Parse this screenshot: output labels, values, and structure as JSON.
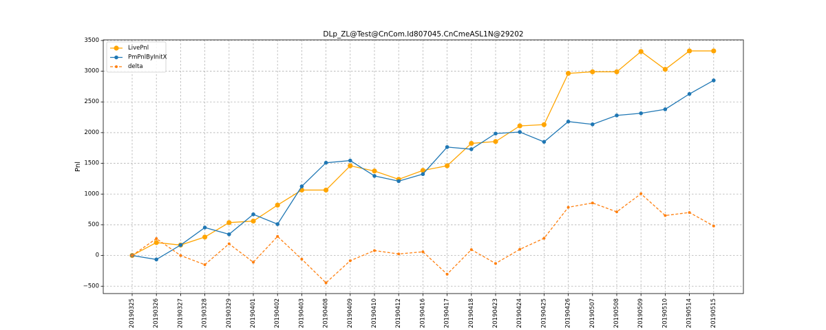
{
  "chart_data": {
    "type": "line",
    "title": "DLp_ZL@Test@CnCom.Id807045.CnCmeASL1N@29202",
    "xlabel": "",
    "ylabel": "Pnl",
    "categories": [
      "20190325",
      "20190326",
      "20190327",
      "20190328",
      "20190329",
      "20190401",
      "20190402",
      "20190403",
      "20190408",
      "20190409",
      "20190410",
      "20190412",
      "20190416",
      "20190417",
      "20190418",
      "20190423",
      "20190424",
      "20190425",
      "20190426",
      "20190507",
      "20190508",
      "20190509",
      "20190510",
      "20190514",
      "20190515"
    ],
    "ylim": [
      -620,
      3510
    ],
    "yticks": [
      -500,
      0,
      500,
      1000,
      1500,
      2000,
      2500,
      3000,
      3500
    ],
    "ytick_labels": [
      "−500",
      "0",
      "500",
      "1000",
      "1500",
      "2000",
      "2500",
      "3000",
      "3500"
    ],
    "grid": true,
    "legend_position": "top-left",
    "series": [
      {
        "name": "LivePnl",
        "color": "#ffa500",
        "style": "solid",
        "marker_size": "large",
        "values": [
          0,
          210,
          170,
          300,
          535,
          560,
          820,
          1065,
          1065,
          1460,
          1375,
          1240,
          1385,
          1460,
          1825,
          1855,
          2110,
          2130,
          2965,
          2990,
          2990,
          3320,
          3030,
          3330,
          3330
        ]
      },
      {
        "name": "PmPnlByInitX",
        "color": "#1f77b4",
        "style": "solid",
        "marker_size": "medium",
        "values": [
          0,
          -65,
          170,
          455,
          345,
          670,
          510,
          1125,
          1510,
          1545,
          1295,
          1210,
          1325,
          1765,
          1730,
          1985,
          2010,
          1850,
          2180,
          2135,
          2280,
          2315,
          2380,
          2630,
          2850
        ]
      },
      {
        "name": "delta",
        "color": "#ff7f0e",
        "style": "dashed",
        "marker_size": "small",
        "values": [
          0,
          275,
          0,
          -150,
          190,
          -110,
          310,
          -60,
          -445,
          -85,
          80,
          25,
          60,
          -305,
          95,
          -130,
          100,
          280,
          785,
          855,
          710,
          1005,
          650,
          700,
          480
        ]
      }
    ]
  }
}
